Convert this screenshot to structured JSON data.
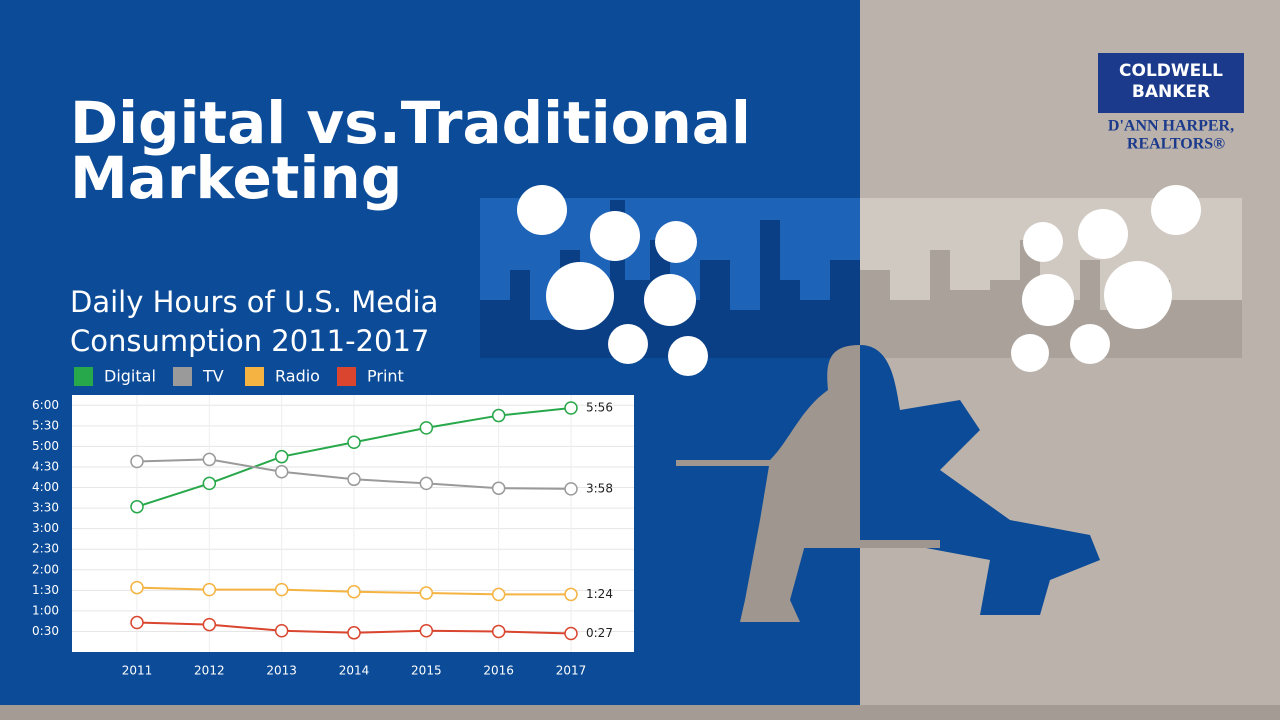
{
  "heading": [
    "Digital vs.Traditional",
    "Marketing"
  ],
  "logo": {
    "brand": [
      "COLDWELL",
      "BANKER"
    ],
    "agent": [
      "D'ANN HARPER,",
      "REALTORS®"
    ]
  },
  "chart_data": {
    "type": "line",
    "title": [
      "Daily Hours of U.S. Media",
      "Consumption 2011-2017"
    ],
    "categories": [
      "2011",
      "2012",
      "2013",
      "2014",
      "2015",
      "2016",
      "2017"
    ],
    "series": [
      {
        "name": "Digital",
        "color": "#27a84a",
        "values": [
          212,
          246,
          285,
          306,
          327,
          345,
          356
        ],
        "value_labels": [
          null,
          null,
          null,
          null,
          null,
          null,
          "5:56"
        ]
      },
      {
        "name": "TV",
        "color": "#9a9a9a",
        "values": [
          278,
          281,
          263,
          252,
          246,
          239,
          238
        ],
        "value_labels": [
          null,
          null,
          null,
          null,
          null,
          null,
          "3:58"
        ]
      },
      {
        "name": "Radio",
        "color": "#f5b342",
        "values": [
          94,
          91,
          91,
          88,
          86,
          84,
          84
        ],
        "value_labels": [
          null,
          null,
          null,
          null,
          null,
          null,
          "1:24"
        ]
      },
      {
        "name": "Print",
        "color": "#d9452e",
        "values": [
          43,
          40,
          31,
          28,
          31,
          30,
          27
        ],
        "value_labels": [
          null,
          null,
          null,
          null,
          null,
          null,
          "0:27"
        ]
      }
    ],
    "ylim": [
      0,
      375
    ],
    "yticks": [
      {
        "value": 30,
        "label": "0:30"
      },
      {
        "value": 60,
        "label": "1:00"
      },
      {
        "value": 90,
        "label": "1:30"
      },
      {
        "value": 120,
        "label": "2:00"
      },
      {
        "value": 150,
        "label": "2:30"
      },
      {
        "value": 180,
        "label": "3:00"
      },
      {
        "value": 210,
        "label": "3:30"
      },
      {
        "value": 240,
        "label": "4:00"
      },
      {
        "value": 270,
        "label": "4:30"
      },
      {
        "value": 300,
        "label": "5:00"
      },
      {
        "value": 330,
        "label": "5:30"
      },
      {
        "value": 360,
        "label": "6:00"
      }
    ],
    "grid": true,
    "legend": "top"
  }
}
